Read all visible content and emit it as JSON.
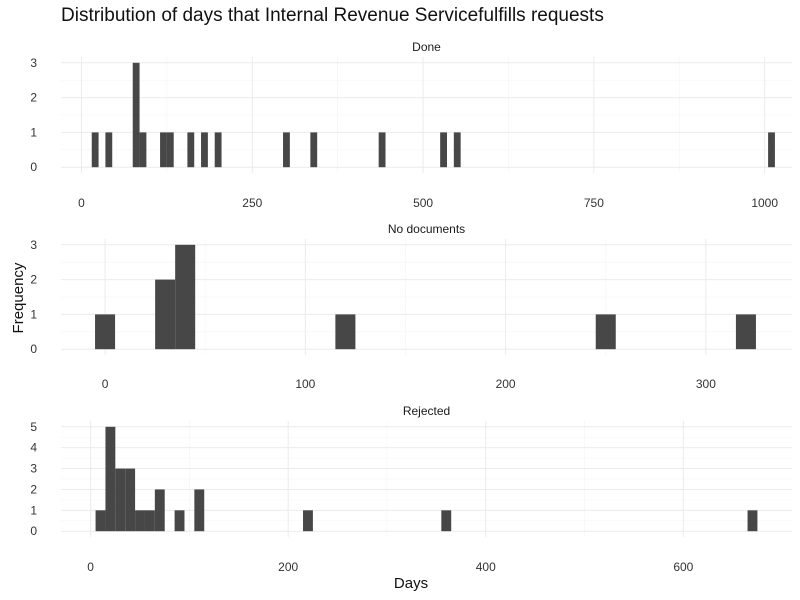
{
  "chart_data": {
    "type": "bar",
    "title": "Distribution of days that Internal Revenue Servicefulfills requests",
    "xlabel": "Days",
    "ylabel": "Frequency",
    "grid": true,
    "legend": "none",
    "bar_color": "#474747",
    "grid_color": "#ebebeb",
    "panels": [
      {
        "label": "Done",
        "x_range": [
          -30,
          1040
        ],
        "y_range": [
          0,
          3
        ],
        "x_ticks": [
          0,
          250,
          500,
          750,
          1000
        ],
        "y_ticks": [
          0,
          1,
          2,
          3
        ],
        "bin_width": 10,
        "bins": [
          {
            "x": 20,
            "count": 1
          },
          {
            "x": 40,
            "count": 1
          },
          {
            "x": 80,
            "count": 3
          },
          {
            "x": 90,
            "count": 1
          },
          {
            "x": 120,
            "count": 1
          },
          {
            "x": 130,
            "count": 1
          },
          {
            "x": 160,
            "count": 1
          },
          {
            "x": 180,
            "count": 1
          },
          {
            "x": 200,
            "count": 1
          },
          {
            "x": 300,
            "count": 1
          },
          {
            "x": 340,
            "count": 1
          },
          {
            "x": 440,
            "count": 1
          },
          {
            "x": 530,
            "count": 1
          },
          {
            "x": 550,
            "count": 1
          },
          {
            "x": 1010,
            "count": 1
          }
        ]
      },
      {
        "label": "No documents",
        "x_range": [
          -22,
          343
        ],
        "y_range": [
          0,
          3
        ],
        "x_ticks": [
          0,
          100,
          200,
          300
        ],
        "y_ticks": [
          0,
          1,
          2,
          3
        ],
        "bin_width": 10,
        "bins": [
          {
            "x": 0,
            "count": 1
          },
          {
            "x": 30,
            "count": 2
          },
          {
            "x": 40,
            "count": 3
          },
          {
            "x": 120,
            "count": 1
          },
          {
            "x": 250,
            "count": 1
          },
          {
            "x": 320,
            "count": 1
          }
        ]
      },
      {
        "label": "Rejected",
        "x_range": [
          -30,
          710
        ],
        "y_range": [
          0,
          5
        ],
        "x_ticks": [
          0,
          200,
          400,
          600
        ],
        "y_ticks": [
          0,
          1,
          2,
          3,
          4,
          5
        ],
        "bin_width": 10,
        "bins": [
          {
            "x": 10,
            "count": 1
          },
          {
            "x": 20,
            "count": 5
          },
          {
            "x": 30,
            "count": 3
          },
          {
            "x": 40,
            "count": 3
          },
          {
            "x": 50,
            "count": 1
          },
          {
            "x": 60,
            "count": 1
          },
          {
            "x": 70,
            "count": 2
          },
          {
            "x": 90,
            "count": 1
          },
          {
            "x": 110,
            "count": 2
          },
          {
            "x": 220,
            "count": 1
          },
          {
            "x": 360,
            "count": 1
          },
          {
            "x": 670,
            "count": 1
          }
        ]
      }
    ]
  }
}
